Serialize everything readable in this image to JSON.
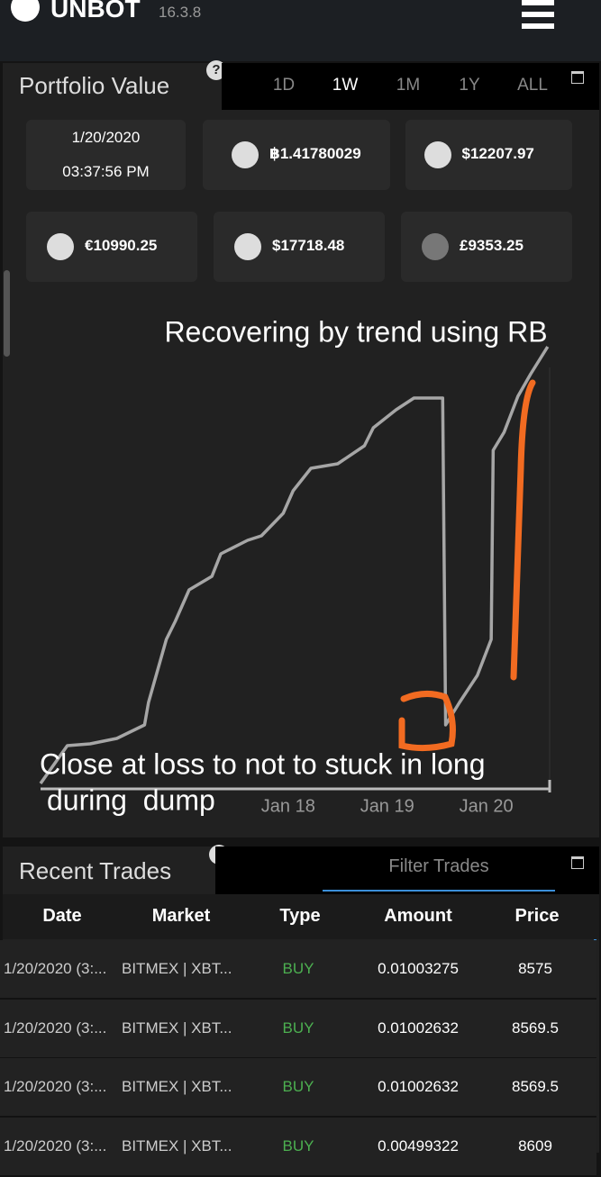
{
  "header": {
    "app_name": "UNBOT",
    "version": "16.3.8"
  },
  "portfolio": {
    "title": "Portfolio Value",
    "help": "?",
    "tabs": [
      "1D",
      "1W",
      "1M",
      "1Y",
      "ALL"
    ],
    "selected_tab": 1,
    "date": "1/20/2020",
    "time": "03:37:56 PM",
    "balances": [
      "฿1.41780029",
      "$12207.97",
      "€10990.25",
      "$17718.48",
      "£9353.25"
    ]
  },
  "chart_data": {
    "type": "line",
    "annotations": [
      "Recovering by trend using RB",
      "Close at loss to not to stuck in long",
      "during  dump"
    ],
    "x": [
      15.5,
      15.77,
      16.0,
      16.27,
      16.55,
      16.59,
      16.68,
      16.77,
      16.86,
      17.0,
      17.23,
      17.32,
      17.59,
      17.73,
      17.95,
      18.05,
      18.23,
      18.5,
      18.77,
      18.86,
      19.09,
      19.27,
      19.56,
      19.59,
      19.73,
      19.91,
      20.05,
      20.07,
      20.18,
      20.32,
      20.45,
      20.62
    ],
    "series": [
      {
        "color": "#a6a6a6",
        "values": [
          2,
          10.4,
          10.8,
          12,
          15,
          20,
          27,
          34,
          38,
          45,
          48,
          53,
          56,
          57,
          62,
          67,
          72,
          73,
          77,
          81,
          85,
          87.6,
          87.6,
          15,
          20,
          26,
          34,
          76,
          80,
          88,
          93,
          99
        ]
      }
    ],
    "xlim": [
      15.5,
      20.64
    ],
    "ylim": [
      0,
      100
    ],
    "xticks": [
      {
        "value": 18,
        "label": "Jan 18"
      },
      {
        "value": 19,
        "label": "Jan 19"
      },
      {
        "value": 20,
        "label": "Jan 20"
      }
    ]
  },
  "trades": {
    "title": "Recent Trades",
    "help": "?",
    "filter_placeholder": "Filter Trades",
    "columns": [
      "Date",
      "Market",
      "Type",
      "Amount",
      "Price"
    ],
    "rows": [
      [
        "1/20/2020 (3:...",
        "BITMEX | XBT...",
        "BUY",
        "0.01003275",
        "8575"
      ],
      [
        "1/20/2020 (3:...",
        "BITMEX | XBT...",
        "BUY",
        "0.01002632",
        "8569.5"
      ],
      [
        "1/20/2020 (3:...",
        "BITMEX | XBT...",
        "BUY",
        "0.01002632",
        "8569.5"
      ],
      [
        "1/20/2020 (3:...",
        "BITMEX | XBT...",
        "BUY",
        "0.00499322",
        "8609"
      ]
    ]
  }
}
